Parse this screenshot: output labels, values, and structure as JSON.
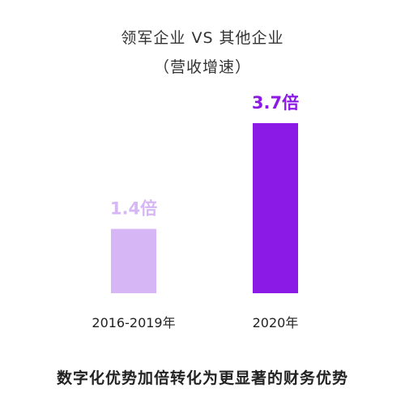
{
  "chart_data": {
    "type": "bar",
    "title": "领军企业 VS 其他企业",
    "subtitle": "（营收增速）",
    "categories": [
      "2016-2019年",
      "2020年"
    ],
    "values": [
      1.4,
      3.7
    ],
    "value_labels": [
      "1.4倍",
      "3.7倍"
    ],
    "bar_colors": [
      "#d7b6f5",
      "#8b1ae6"
    ],
    "ylim": [
      0,
      4
    ],
    "grid": false,
    "legend": "none",
    "caption": "数字化优势加倍转化为更显著的财务优势"
  }
}
